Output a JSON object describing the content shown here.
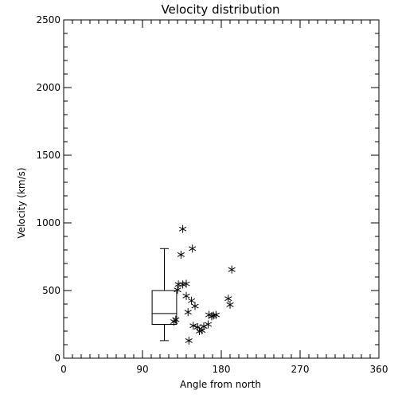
{
  "chart_data": {
    "type": "scatter",
    "title": "Velocity distribution",
    "xlabel": "Angle from north",
    "ylabel": "Velocity (km/s)",
    "xlim": [
      0,
      360
    ],
    "ylim": [
      0,
      2500
    ],
    "xticks": [
      0,
      90,
      180,
      270,
      360
    ],
    "yticks": [
      0,
      500,
      1000,
      1500,
      2000,
      2500
    ],
    "x_minor_step": 10,
    "y_minor_step": 100,
    "grid": false,
    "legend": "none",
    "marker": "asterisk",
    "points": [
      {
        "x": 136,
        "y": 955
      },
      {
        "x": 134,
        "y": 765
      },
      {
        "x": 147,
        "y": 810
      },
      {
        "x": 131,
        "y": 545
      },
      {
        "x": 136,
        "y": 545
      },
      {
        "x": 140,
        "y": 550
      },
      {
        "x": 130,
        "y": 505
      },
      {
        "x": 128,
        "y": 285
      },
      {
        "x": 126,
        "y": 270
      },
      {
        "x": 140,
        "y": 460
      },
      {
        "x": 146,
        "y": 425
      },
      {
        "x": 150,
        "y": 385
      },
      {
        "x": 142,
        "y": 340
      },
      {
        "x": 148,
        "y": 240
      },
      {
        "x": 153,
        "y": 230
      },
      {
        "x": 158,
        "y": 205
      },
      {
        "x": 155,
        "y": 200
      },
      {
        "x": 160,
        "y": 235
      },
      {
        "x": 165,
        "y": 250
      },
      {
        "x": 169,
        "y": 310
      },
      {
        "x": 174,
        "y": 320
      },
      {
        "x": 171,
        "y": 315
      },
      {
        "x": 166,
        "y": 320
      },
      {
        "x": 143,
        "y": 130
      },
      {
        "x": 188,
        "y": 440
      },
      {
        "x": 190,
        "y": 395
      },
      {
        "x": 192,
        "y": 655
      }
    ],
    "boxplot": {
      "x": 115,
      "half_width": 14,
      "whisker_low": 130,
      "q1": 250,
      "median": 330,
      "q3": 500,
      "whisker_high": 810,
      "cap_half_width": 5
    }
  }
}
